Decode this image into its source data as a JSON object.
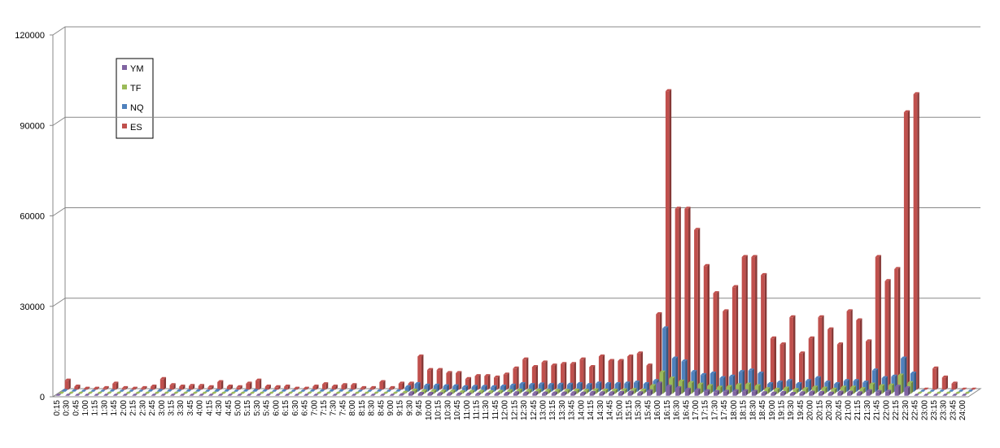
{
  "chart_data": {
    "type": "bar3d",
    "categories": [
      "0:15",
      "0:30",
      "0:45",
      "1:00",
      "1:15",
      "1:30",
      "1:45",
      "2:00",
      "2:15",
      "2:30",
      "2:45",
      "3:00",
      "3:15",
      "3:30",
      "3:45",
      "4:00",
      "4:15",
      "4:30",
      "4:45",
      "5:00",
      "5:15",
      "5:30",
      "5:45",
      "6:00",
      "6:15",
      "6:30",
      "6:45",
      "7:00",
      "7:15",
      "7:30",
      "7:45",
      "8:00",
      "8:15",
      "8:30",
      "8:45",
      "9:00",
      "9:15",
      "9:30",
      "9:45",
      "10:00",
      "10:15",
      "10:30",
      "10:45",
      "11:00",
      "11:15",
      "11:30",
      "11:45",
      "12:00",
      "12:15",
      "12:30",
      "12:45",
      "13:00",
      "13:15",
      "13:30",
      "13:45",
      "14:00",
      "14:15",
      "14:30",
      "14:45",
      "15:00",
      "15:15",
      "15:30",
      "15:45",
      "16:00",
      "16:15",
      "16:30",
      "16:45",
      "17:00",
      "17:15",
      "17:30",
      "17:45",
      "18:00",
      "18:15",
      "18:30",
      "18:45",
      "19:00",
      "19:15",
      "19:30",
      "19:45",
      "20:00",
      "20:15",
      "20:30",
      "20:45",
      "21:00",
      "21:15",
      "21:30",
      "21:45",
      "22:00",
      "22:15",
      "22:30",
      "22:45",
      "23:00",
      "23:15",
      "23:30",
      "23:45",
      "24:00"
    ],
    "series": [
      {
        "name": "YM",
        "color": "#8064a2",
        "values": [
          0,
          0,
          0,
          0,
          0,
          0,
          0,
          0,
          0,
          0,
          0,
          0,
          0,
          0,
          0,
          0,
          0,
          0,
          0,
          0,
          0,
          0,
          0,
          0,
          0,
          0,
          0,
          0,
          0,
          0,
          0,
          0,
          0,
          0,
          0,
          0,
          200,
          800,
          600,
          600,
          500,
          500,
          400,
          400,
          400,
          400,
          500,
          600,
          800,
          700,
          800,
          700,
          700,
          700,
          800,
          700,
          900,
          800,
          800,
          900,
          1000,
          800,
          1500,
          4000,
          3000,
          2500,
          2000,
          1800,
          1500,
          1200,
          1300,
          1500,
          1500,
          1300,
          800,
          700,
          900,
          600,
          800,
          1000,
          900,
          700,
          1000,
          1000,
          800,
          1500,
          1200,
          1300,
          3000,
          2500,
          0,
          0,
          0,
          0,
          0,
          0
        ]
      },
      {
        "name": "TF",
        "color": "#9bbb59",
        "values": [
          0,
          0,
          0,
          0,
          0,
          0,
          0,
          0,
          0,
          0,
          0,
          0,
          0,
          0,
          0,
          0,
          0,
          0,
          0,
          0,
          0,
          0,
          0,
          0,
          0,
          0,
          0,
          0,
          0,
          0,
          0,
          0,
          0,
          0,
          0,
          0,
          300,
          1000,
          800,
          800,
          700,
          700,
          500,
          600,
          600,
          500,
          600,
          800,
          1000,
          900,
          1000,
          900,
          900,
          900,
          1000,
          900,
          1100,
          1000,
          1000,
          1100,
          1200,
          1000,
          2500,
          7000,
          5000,
          4000,
          3500,
          3000,
          2500,
          2000,
          2200,
          2800,
          3000,
          2500,
          1500,
          1300,
          1700,
          1200,
          1500,
          2000,
          1700,
          1300,
          2000,
          2000,
          1500,
          3000,
          2500,
          2700,
          6000,
          3500,
          0,
          0,
          0,
          0,
          0,
          0
        ]
      },
      {
        "name": "NQ",
        "color": "#4f81bd",
        "values": [
          200,
          100,
          0,
          0,
          0,
          100,
          0,
          0,
          0,
          100,
          200,
          100,
          100,
          100,
          100,
          0,
          200,
          100,
          0,
          100,
          200,
          100,
          0,
          100,
          0,
          0,
          100,
          100,
          100,
          100,
          100,
          0,
          0,
          100,
          0,
          100,
          1500,
          2500,
          2000,
          2000,
          1800,
          1800,
          1500,
          1600,
          1600,
          1500,
          1700,
          2000,
          2500,
          2200,
          2400,
          2200,
          2300,
          2300,
          2500,
          2200,
          2700,
          2500,
          2500,
          2700,
          3000,
          2500,
          3500,
          21000,
          11000,
          10000,
          6500,
          5500,
          6000,
          4500,
          5000,
          6500,
          7000,
          6000,
          2500,
          3000,
          3500,
          2500,
          3500,
          4500,
          3000,
          2500,
          3500,
          3500,
          3000,
          7000,
          4500,
          5000,
          11000,
          6000,
          0,
          0,
          0,
          0,
          0,
          0
        ]
      },
      {
        "name": "ES",
        "color": "#c0504d",
        "values": [
          3000,
          1000,
          300,
          300,
          500,
          2000,
          500,
          300,
          500,
          1000,
          3500,
          1500,
          1000,
          1200,
          1200,
          800,
          2500,
          1000,
          800,
          2000,
          3000,
          1000,
          800,
          1000,
          300,
          300,
          1000,
          1800,
          1000,
          1500,
          1500,
          500,
          500,
          2500,
          500,
          2000,
          2000,
          11000,
          6500,
          6500,
          5500,
          5500,
          3500,
          4500,
          4500,
          4000,
          5000,
          7000,
          10000,
          7500,
          9000,
          8000,
          8500,
          8500,
          10000,
          7500,
          11000,
          9500,
          9500,
          11000,
          12000,
          8000,
          25000,
          99000,
          60000,
          60000,
          53000,
          41000,
          32000,
          26000,
          34000,
          44000,
          44000,
          38000,
          17000,
          15000,
          24000,
          12000,
          17000,
          24000,
          20000,
          15000,
          26000,
          23000,
          16000,
          44000,
          36000,
          40000,
          92000,
          98000,
          0,
          7000,
          4000,
          2000,
          0,
          0
        ]
      }
    ],
    "ylim": [
      0,
      120000
    ],
    "yticks": [
      0,
      30000,
      60000,
      90000,
      120000
    ],
    "grid": true
  }
}
